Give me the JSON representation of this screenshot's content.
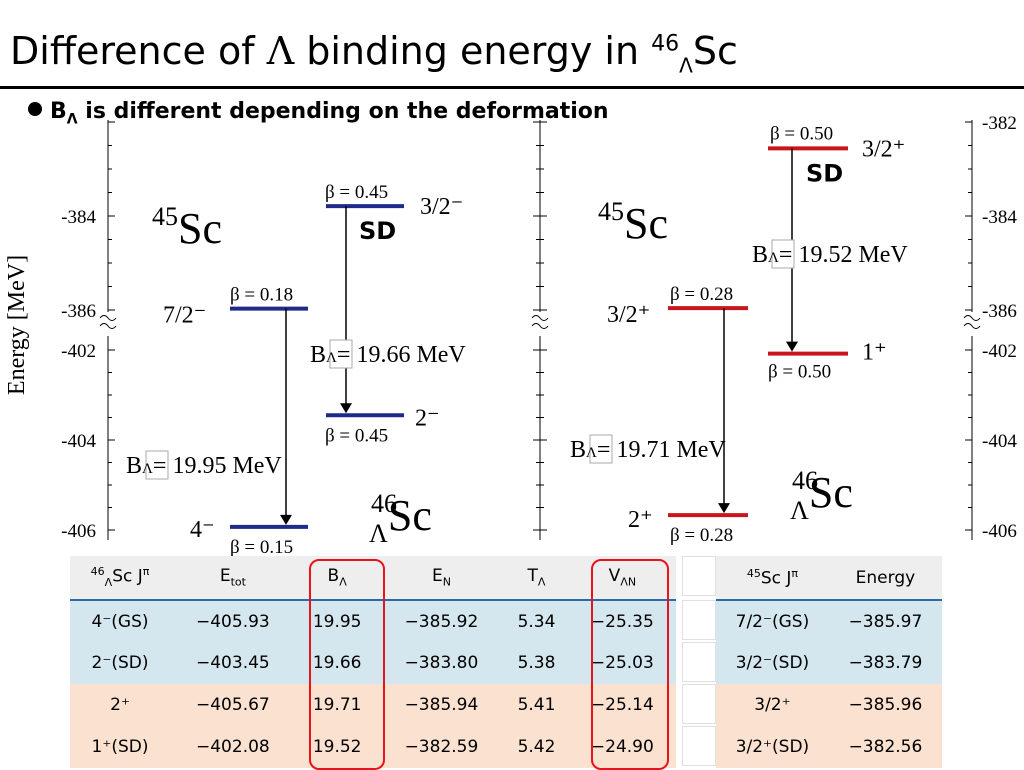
{
  "title": {
    "pre": "Difference of ",
    "lambda": "Λ",
    "mid": " binding energy in ",
    "mass": "46",
    "sub": "Λ",
    "element": "Sc"
  },
  "bullet": {
    "b": "B",
    "sub": "Λ",
    "text": " is different depending on the deformation"
  },
  "diagram": {
    "ylabel": "Energy [MeV]",
    "left_ticks": [
      "-384",
      "-386",
      "-402",
      "-404",
      "-406"
    ],
    "right_ticks": [
      "-382",
      "-384",
      "-386",
      "-402",
      "-404",
      "-406"
    ],
    "core_label": {
      "mass": "45",
      "element": "Sc"
    },
    "hyper_label": {
      "mass": "46",
      "sub": "Λ",
      "element": "Sc"
    },
    "sd_label": "SD",
    "colors": {
      "negative_parity": "#1f2a8a",
      "positive_parity": "#c8161d"
    },
    "negative_parity": {
      "core_gs": {
        "jpi": "7/2⁻",
        "beta": "β = 0.18",
        "energy": -385.97
      },
      "core_sd": {
        "jpi": "3/2⁻",
        "beta": "β = 0.45",
        "energy": -383.79
      },
      "hyper_gs": {
        "jpi": "4⁻",
        "beta": "β = 0.15",
        "energy": -405.93
      },
      "hyper_sd": {
        "jpi": "2⁻",
        "beta": "β = 0.45",
        "energy": -403.45
      },
      "b_gs": "BΛ= 19.95 MeV",
      "b_sd": "BΛ= 19.66 MeV"
    },
    "positive_parity": {
      "core_gs": {
        "jpi": "3/2⁺",
        "beta": "β = 0.28",
        "energy": -385.96
      },
      "core_sd": {
        "jpi": "3/2⁺",
        "beta": "β = 0.50",
        "energy": -382.56
      },
      "hyper_gs": {
        "jpi": "2⁺",
        "beta": "β = 0.28",
        "energy": -405.67
      },
      "hyper_sd": {
        "jpi": "1⁺",
        "beta": "β = 0.50",
        "energy": -402.08
      },
      "b_gs": "BΛ= 19.71 MeV",
      "b_sd": "BΛ= 19.52 MeV"
    }
  },
  "main_table": {
    "headers": [
      {
        "pre_sup": "46",
        "sub": "Λ",
        "main": "Sc J",
        "sup": "π"
      },
      {
        "main": "E",
        "sub": "tot"
      },
      {
        "main": "B",
        "sub": "Λ"
      },
      {
        "main": "E",
        "sub": "N"
      },
      {
        "main": "T",
        "sub": "Λ"
      },
      {
        "main": "V",
        "sub": "ΛN"
      }
    ],
    "rows": [
      {
        "parity": "neg",
        "cells": [
          "4⁻(GS)",
          "−405.93",
          "19.95",
          "−385.92",
          "5.34",
          "−25.35"
        ]
      },
      {
        "parity": "neg",
        "cells": [
          "2⁻(SD)",
          "−403.45",
          "19.66",
          "−383.80",
          "5.38",
          "−25.03"
        ]
      },
      {
        "parity": "pos",
        "cells": [
          "2⁺",
          "−405.67",
          "19.71",
          "−385.94",
          "5.41",
          "−25.14"
        ]
      },
      {
        "parity": "pos",
        "cells": [
          "1⁺(SD)",
          "−402.08",
          "19.52",
          "−382.59",
          "5.42",
          "−24.90"
        ]
      }
    ]
  },
  "side_table": {
    "headers": [
      {
        "pre_sup": "45",
        "main": "Sc J",
        "sup": "π"
      },
      {
        "main": "Energy"
      }
    ],
    "rows": [
      {
        "parity": "neg",
        "cells": [
          "7/2⁻(GS)",
          "−385.97"
        ]
      },
      {
        "parity": "neg",
        "cells": [
          "3/2⁻(SD)",
          "−383.79"
        ]
      },
      {
        "parity": "pos",
        "cells": [
          "3/2⁺",
          "−385.96"
        ]
      },
      {
        "parity": "pos",
        "cells": [
          "3/2⁺(SD)",
          "−382.56"
        ]
      }
    ]
  }
}
